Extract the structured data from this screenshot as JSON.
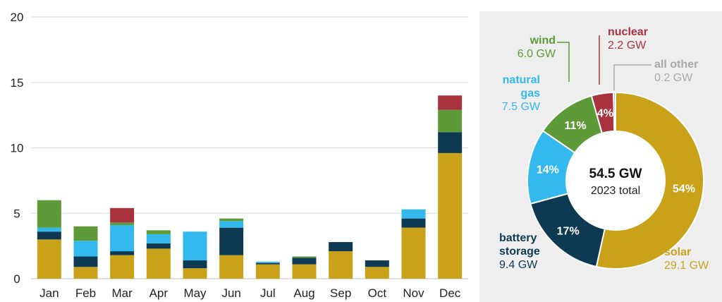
{
  "colors": {
    "solar": "#C9A21A",
    "battery_storage": "#0D3A52",
    "natural_gas": "#33B9EE",
    "wind": "#5F9A38",
    "nuclear": "#A8323E",
    "all_other": "#A8A8A8"
  },
  "chart_data": [
    {
      "type": "bar",
      "stacked": true,
      "categories": [
        "Jan",
        "Feb",
        "Mar",
        "Apr",
        "May",
        "Jun",
        "Jul",
        "Aug",
        "Sep",
        "Oct",
        "Nov",
        "Dec"
      ],
      "ylim": [
        0,
        20
      ],
      "yticks": [
        0,
        5,
        10,
        15,
        20
      ],
      "grid": true,
      "series": [
        {
          "key": "solar",
          "values": [
            3.0,
            0.9,
            1.8,
            2.3,
            0.8,
            1.8,
            1.1,
            1.1,
            2.1,
            0.9,
            3.9,
            9.6
          ]
        },
        {
          "key": "battery_storage",
          "values": [
            0.6,
            0.8,
            0.3,
            0.4,
            0.6,
            2.1,
            0.1,
            0.5,
            0.7,
            0.5,
            0.7,
            1.6
          ]
        },
        {
          "key": "natural_gas",
          "values": [
            0.3,
            1.2,
            2.0,
            0.7,
            2.2,
            0.5,
            0.1,
            0.0,
            0.0,
            0.0,
            0.7,
            0.0
          ]
        },
        {
          "key": "wind",
          "values": [
            2.1,
            1.1,
            0.2,
            0.3,
            0.0,
            0.2,
            0.0,
            0.1,
            0.0,
            0.0,
            0.0,
            1.7
          ]
        },
        {
          "key": "nuclear",
          "values": [
            0.0,
            0.0,
            1.1,
            0.0,
            0.0,
            0.0,
            0.0,
            0.0,
            0.0,
            0.0,
            0.0,
            1.1
          ]
        }
      ]
    },
    {
      "type": "pie",
      "donut": true,
      "center_value": "54.5 GW",
      "center_label": "2023 total",
      "slices": [
        {
          "key": "solar",
          "name": "solar",
          "value": 29.1,
          "value_label": "29.1 GW",
          "pct_label": "54%"
        },
        {
          "key": "battery_storage",
          "name_lines": [
            "battery",
            "storage"
          ],
          "value": 9.4,
          "value_label": "9.4 GW",
          "pct_label": "17%"
        },
        {
          "key": "natural_gas",
          "name_lines": [
            "natural",
            "gas"
          ],
          "value": 7.5,
          "value_label": "7.5 GW",
          "pct_label": "14%"
        },
        {
          "key": "wind",
          "name": "wind",
          "value": 6.0,
          "value_label": "6.0 GW",
          "pct_label": "11%"
        },
        {
          "key": "nuclear",
          "name": "nuclear",
          "value": 2.2,
          "value_label": "2.2 GW",
          "pct_label": "4%"
        },
        {
          "key": "all_other",
          "name": "all other",
          "value": 0.2,
          "value_label": "0.2 GW",
          "pct_label": ""
        }
      ]
    }
  ]
}
